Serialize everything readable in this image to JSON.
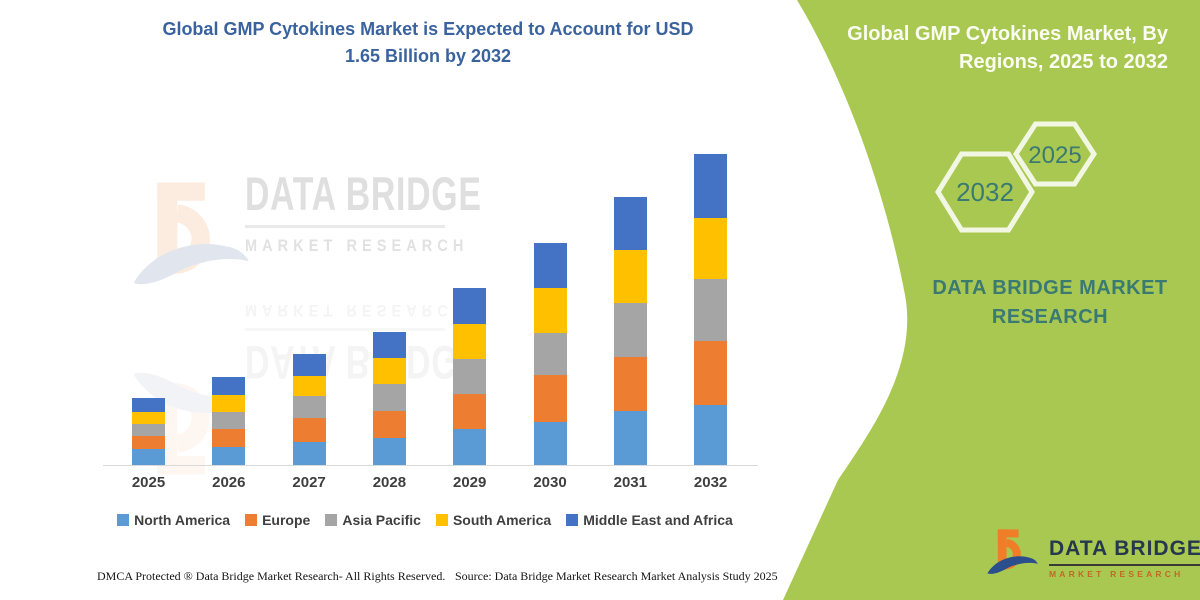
{
  "chart": {
    "title_line1": "Global GMP Cytokines Market is Expected to Account for USD",
    "title_line2": "1.65 Billion by 2032",
    "title_color": "#3A639E"
  },
  "chart_data": {
    "type": "bar",
    "stacked": true,
    "title": "Global GMP Cytokines Market is Expected to Account for USD 1.65 Billion by 2032",
    "unit": "USD Billion",
    "categories": [
      "2025",
      "2026",
      "2027",
      "2028",
      "2029",
      "2030",
      "2031",
      "2032"
    ],
    "series": [
      {
        "name": "North America",
        "color": "#5B9BD5",
        "values": [
          0.085,
          0.095,
          0.122,
          0.143,
          0.191,
          0.228,
          0.286,
          0.318
        ]
      },
      {
        "name": "Europe",
        "color": "#ED7D31",
        "values": [
          0.069,
          0.095,
          0.127,
          0.143,
          0.186,
          0.249,
          0.286,
          0.34
        ]
      },
      {
        "name": "Asia Pacific",
        "color": "#A5A5A5",
        "values": [
          0.064,
          0.09,
          0.117,
          0.143,
          0.186,
          0.223,
          0.286,
          0.329
        ]
      },
      {
        "name": "South America",
        "color": "#FFC000",
        "values": [
          0.064,
          0.09,
          0.106,
          0.138,
          0.186,
          0.239,
          0.281,
          0.324
        ]
      },
      {
        "name": "Middle East and Africa",
        "color": "#4472C4",
        "values": [
          0.074,
          0.095,
          0.117,
          0.138,
          0.191,
          0.239,
          0.281,
          0.34
        ]
      }
    ],
    "ylim": [
      0,
      1.75
    ],
    "grid": false,
    "legend_position": "bottom",
    "xlabel": "",
    "ylabel": ""
  },
  "watermark": {
    "brand": "DATA BRIDGE",
    "sub": "MARKET RESEARCH"
  },
  "panel": {
    "title_line1": "Global GMP Cytokines Market, By",
    "title_line2": "Regions, 2025 to 2032",
    "hex_back": "2032",
    "hex_front": "2025",
    "brand_line1": "DATA BRIDGE MARKET",
    "brand_line2": "RESEARCH",
    "green": "#A9C851",
    "teal": "#3A7A72"
  },
  "logo": {
    "name": "DATA BRIDGE",
    "sub": "MARKET RESEARCH"
  },
  "footer": {
    "left": "DMCA Protected ® Data Bridge Market Research-  All Rights Reserved.",
    "source": "Source: Data Bridge Market Research  Market Analysis Study 2025"
  }
}
